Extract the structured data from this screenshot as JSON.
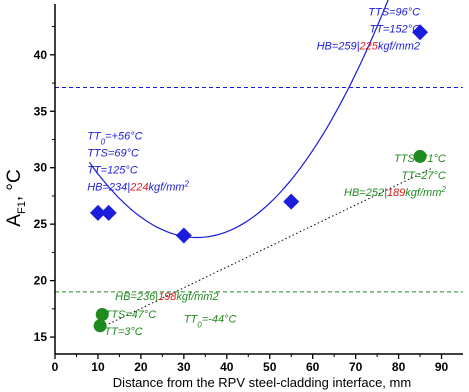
{
  "chart_data": {
    "type": "scatter",
    "xlabel": "Distance from the RPV steel-cladding interface, mm",
    "ylabel": "A",
    "ylabel_sub": "F1",
    "ylabel_unit": ", °C",
    "xlim": [
      0,
      95
    ],
    "ylim": [
      13.5,
      44.5
    ],
    "x_ticks": [
      0,
      10,
      20,
      30,
      40,
      50,
      60,
      70,
      80,
      90
    ],
    "y_ticks": [
      15,
      20,
      25,
      30,
      35,
      40
    ],
    "grid": false,
    "colors": {
      "blue": "#1c1cdc",
      "green": "#1f8b1f",
      "red": "#e01c1c",
      "axis": "#000000"
    },
    "series": [
      {
        "marker": "diamond",
        "color": "#1c1cdc",
        "points": [
          {
            "x": 10,
            "y": 26
          },
          {
            "x": 12.5,
            "y": 26
          },
          {
            "x": 30,
            "y": 24
          },
          {
            "x": 55,
            "y": 27
          },
          {
            "x": 85,
            "y": 42
          }
        ]
      },
      {
        "marker": "circle",
        "color": "#1f8b1f",
        "points": [
          {
            "x": 10.5,
            "y": 16
          },
          {
            "x": 11,
            "y": 17
          },
          {
            "x": 85,
            "y": 31
          }
        ]
      }
    ],
    "fit_curves": [
      {
        "kind": "quadratic",
        "color": "#1c1cdc",
        "style": "solid",
        "x_range": [
          8,
          87
        ],
        "coef": [
          0.01062,
          -0.7021,
          35.42
        ]
      },
      {
        "kind": "linear",
        "color": "#000000",
        "style": "dotted",
        "x_range": [
          10,
          88
        ],
        "points": [
          [
            10,
            15.7
          ],
          [
            88,
            30
          ]
        ]
      }
    ],
    "reference_lines": [
      {
        "axis": "y",
        "y": 37.1,
        "color": "#1c1cdc",
        "style": "dashed"
      },
      {
        "axis": "y",
        "y": 19.0,
        "color": "#1f8b1f",
        "style": "dashed"
      }
    ],
    "annotations": [
      {
        "id": "a1",
        "x": 85,
        "y": 43.5,
        "align": "end",
        "color": "#1c1cdc",
        "lines": [
          [
            {
              "t": "TTS=96°C"
            }
          ],
          [
            {
              "t": "TT=152°C"
            }
          ],
          [
            {
              "t": "HB=259|",
              "c": "#1c1cdc"
            },
            {
              "t": "225",
              "c": "#e01c1c"
            },
            {
              "t": "kgf/mm2",
              "c": "#1c1cdc"
            }
          ]
        ]
      },
      {
        "id": "a2",
        "x": 7.5,
        "y": 32.5,
        "align": "start",
        "color": "#1c1cdc",
        "lines": [
          [
            {
              "t": "TT"
            },
            {
              "t": "0",
              "sub": true
            },
            {
              "t": "=+56°C"
            }
          ],
          [
            {
              "t": "TTS=69°C"
            }
          ],
          [
            {
              "t": "TT=125°C"
            }
          ],
          [
            {
              "t": "HB=234|",
              "c": "#1c1cdc"
            },
            {
              "t": "224",
              "c": "#e01c1c"
            },
            {
              "t": "kgf/mm",
              "c": "#1c1cdc"
            },
            {
              "t": "2",
              "sup": true,
              "c": "#1c1cdc"
            }
          ]
        ]
      },
      {
        "id": "a3",
        "x": 91,
        "y": 30.5,
        "align": "end",
        "color": "#1f8b1f",
        "lines": [
          [
            {
              "t": "TTS=71°C"
            }
          ],
          [
            {
              "t": "TT=27°C"
            }
          ],
          [
            {
              "t": "HB=252|",
              "c": "#1f8b1f"
            },
            {
              "t": "189",
              "c": "#e01c1c"
            },
            {
              "t": "kgf/mm",
              "c": "#1f8b1f"
            },
            {
              "t": "2",
              "sup": true,
              "c": "#1f8b1f"
            }
          ]
        ]
      },
      {
        "id": "a4",
        "x": 14,
        "y": 18.3,
        "align": "start",
        "color": "#1f8b1f",
        "lines": [
          [
            {
              "t": "HB=236|",
              "c": "#1f8b1f"
            },
            {
              "t": "198",
              "c": "#e01c1c"
            },
            {
              "t": "kgf/mm2",
              "c": "#1f8b1f"
            }
          ]
        ]
      },
      {
        "id": "a5",
        "x": 11.5,
        "y": 16.7,
        "align": "start",
        "color": "#1f8b1f",
        "lines": [
          [
            {
              "t": "TTS=47°C"
            }
          ],
          [
            {
              "t": "TT=3°C"
            }
          ]
        ]
      },
      {
        "id": "a6",
        "x": 30,
        "y": 16.3,
        "align": "start",
        "color": "#1f8b1f",
        "lines": [
          [
            {
              "t": "TT"
            },
            {
              "t": "0",
              "sub": true
            },
            {
              "t": "=-44°C"
            }
          ]
        ]
      }
    ]
  }
}
